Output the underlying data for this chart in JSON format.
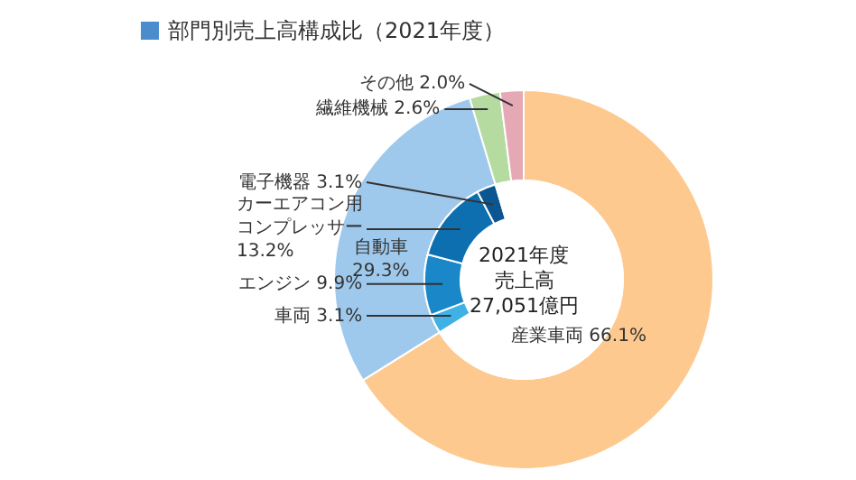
{
  "chart_data": [
    {
      "type": "donut",
      "title": "部門別売上高構成比（2021年度）",
      "color": "#4a8ccc",
      "annotations": [
        "2021年度",
        "売上高",
        "27,051億円"
      ],
      "data_labels": true,
      "categories": [
        "産業車両",
        "自動車",
        "繊維機械",
        "その他"
      ],
      "values": [
        66.1,
        29.3,
        2.6,
        2.0
      ],
      "value_labels": [
        "66.1%",
        "29.3%",
        "2.6%",
        "2.0%"
      ],
      "colors": [
        "#fdc98f",
        "#9ec9ec",
        "#b5dba0",
        "#e4a9b4"
      ]
    },
    {
      "type": "donut",
      "data_labels": true,
      "categories": [
        null,
        "車両",
        "エンジン",
        "カーエアコン用コンプレッサー",
        "電子機器",
        null
      ],
      "values": [
        66.1,
        3.1,
        9.9,
        13.2,
        3.1,
        4.6
      ],
      "value_labels": [
        null,
        "3.1%",
        "9.9%",
        "13.2%",
        "3.1%",
        null
      ],
      "colors": [
        "#ffffff",
        "#3fb1e5",
        "#1a87c9",
        "#0e6fb0",
        "#0b5590",
        "#ffffff"
      ]
    }
  ]
}
